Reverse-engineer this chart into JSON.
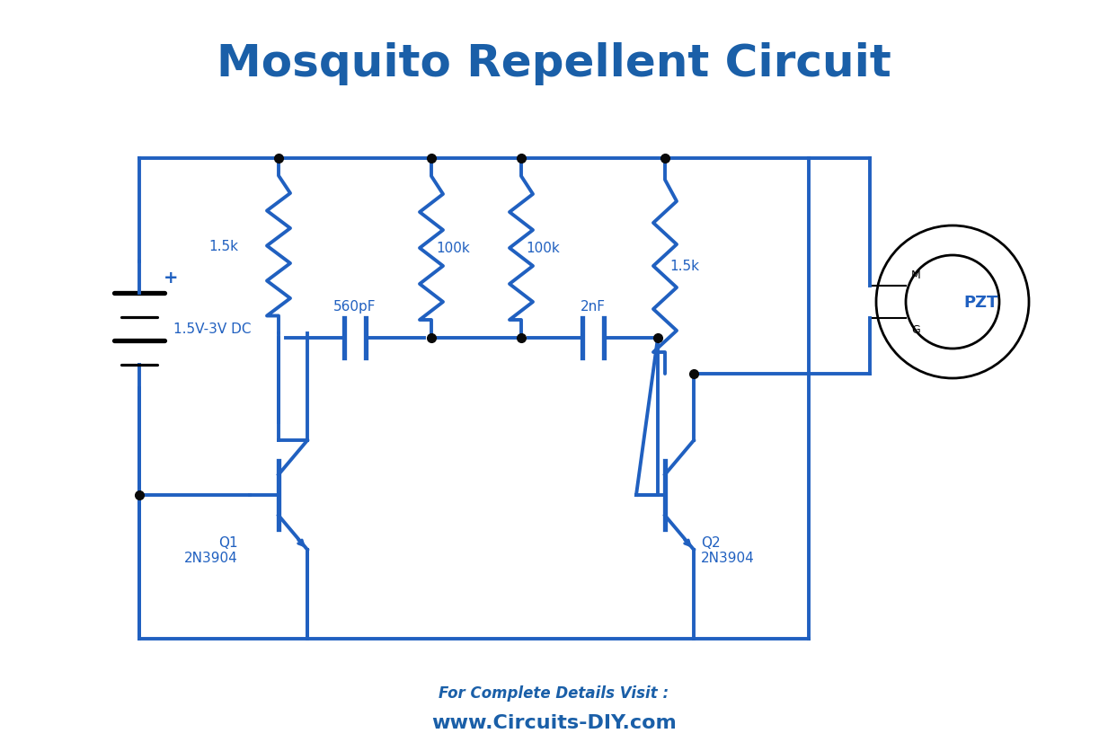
{
  "title": "Mosquito Repellent Circuit",
  "title_color": "#1a5fa8",
  "title_fontsize": 36,
  "title_fontweight": "bold",
  "bg_color": "#ffffff",
  "circuit_color": "#2060c0",
  "wire_lw": 2.8,
  "component_color": "#2060c0",
  "black_color": "#000000",
  "dot_color": "#0a0a0a",
  "footer_text1": "For Complete Details Visit :",
  "footer_text2": "www.Circuits-DIY.com",
  "footer_color": "#1a5fa8",
  "label_1_5k_1": "1.5k",
  "label_100k_1": "100k",
  "label_100k_2": "100k",
  "label_1_5k_2": "1.5k",
  "label_560pF": "560pF",
  "label_2nF": "2nF",
  "label_Q1": "Q1\n2N3904",
  "label_Q2": "Q2\n2N3904",
  "label_PZT": "PZT",
  "label_battery": "1.5V-3V DC"
}
